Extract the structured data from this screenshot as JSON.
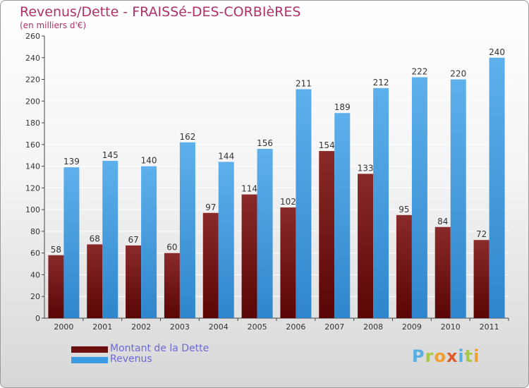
{
  "header": {
    "title": "Revenus/Dette - FRAISSé-DES-CORBIèRES",
    "subtitle": "(en milliers d'€)"
  },
  "legend": [
    {
      "label": "Montant de la Dette",
      "color": "#6e0f0f"
    },
    {
      "label": "Revenus",
      "color": "#3a9be3"
    }
  ],
  "brand": {
    "text": "Proxiti",
    "letters": [
      {
        "char": "P",
        "color": "#58aee0"
      },
      {
        "char": "r",
        "color": "#a8c84a"
      },
      {
        "char": "o",
        "color": "#f0a030"
      },
      {
        "char": "x",
        "color": "#e05a2a"
      },
      {
        "char": "i",
        "color": "#58aee0"
      },
      {
        "char": "t",
        "color": "#a8c84a"
      },
      {
        "char": "i",
        "color": "#f0a030"
      }
    ]
  },
  "colors": {
    "title": "#b0306a",
    "debt_top": "#8a2a2a",
    "debt_bottom": "#5a0505",
    "revenue_top": "#5eb0ec",
    "revenue_bottom": "#2f86cc",
    "grid": "#ffffff"
  },
  "chart_data": {
    "type": "bar",
    "categories": [
      "2000",
      "2001",
      "2002",
      "2003",
      "2004",
      "2005",
      "2006",
      "2007",
      "2008",
      "2009",
      "2010",
      "2011"
    ],
    "series": [
      {
        "name": "Montant de la Dette",
        "values": [
          58,
          68,
          67,
          60,
          97,
          114,
          102,
          154,
          133,
          95,
          84,
          72
        ]
      },
      {
        "name": "Revenus",
        "values": [
          139,
          145,
          140,
          162,
          144,
          156,
          211,
          189,
          212,
          222,
          220,
          240
        ]
      }
    ],
    "ylim": [
      0,
      260
    ],
    "y_ticks": [
      0,
      20,
      40,
      60,
      80,
      100,
      120,
      140,
      160,
      180,
      200,
      220,
      240,
      260
    ],
    "grid": true,
    "legend_position": "bottom-left",
    "data_labels": true
  }
}
